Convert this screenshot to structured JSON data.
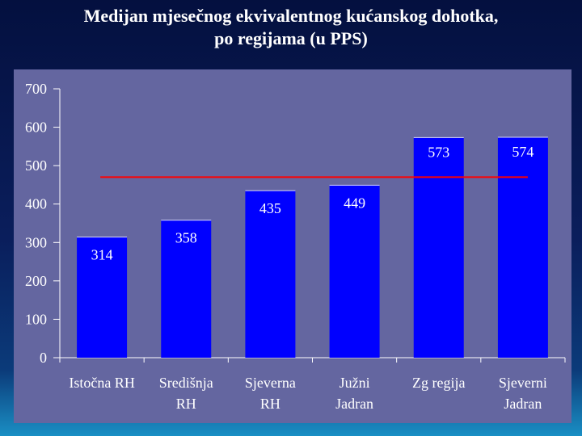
{
  "slide": {
    "title_line1": "Medijan mjesečnog ekvivalentnog kućanskog dohotka,",
    "title_line2": "po regijama (u PPS)"
  },
  "colors": {
    "background": "#0a1e5c",
    "plot_area": "#6466a0",
    "bar": "#0000ff",
    "reference_line": "#ff0000",
    "text": "#ffffff"
  },
  "chart_data": {
    "type": "bar",
    "categories": [
      [
        "Istočna RH"
      ],
      [
        "Središnja",
        "RH"
      ],
      [
        "Sjeverna",
        "RH"
      ],
      [
        "Južni",
        "Jadran"
      ],
      [
        "Zg regija"
      ],
      [
        "Sjeverni",
        "Jadran"
      ]
    ],
    "values": [
      314,
      358,
      435,
      449,
      573,
      574
    ],
    "data_labels": [
      "314",
      "358",
      "435",
      "449",
      "573",
      "574"
    ],
    "ylim": [
      0,
      700
    ],
    "yticks": [
      0,
      100,
      200,
      300,
      400,
      500,
      600,
      700
    ],
    "ytick_labels": [
      "0",
      "100",
      "200",
      "300",
      "400",
      "500",
      "600",
      "700"
    ],
    "reference_line": {
      "y": 470,
      "from_category": 0,
      "to_category": 5
    },
    "grid": false,
    "legend": "none"
  }
}
